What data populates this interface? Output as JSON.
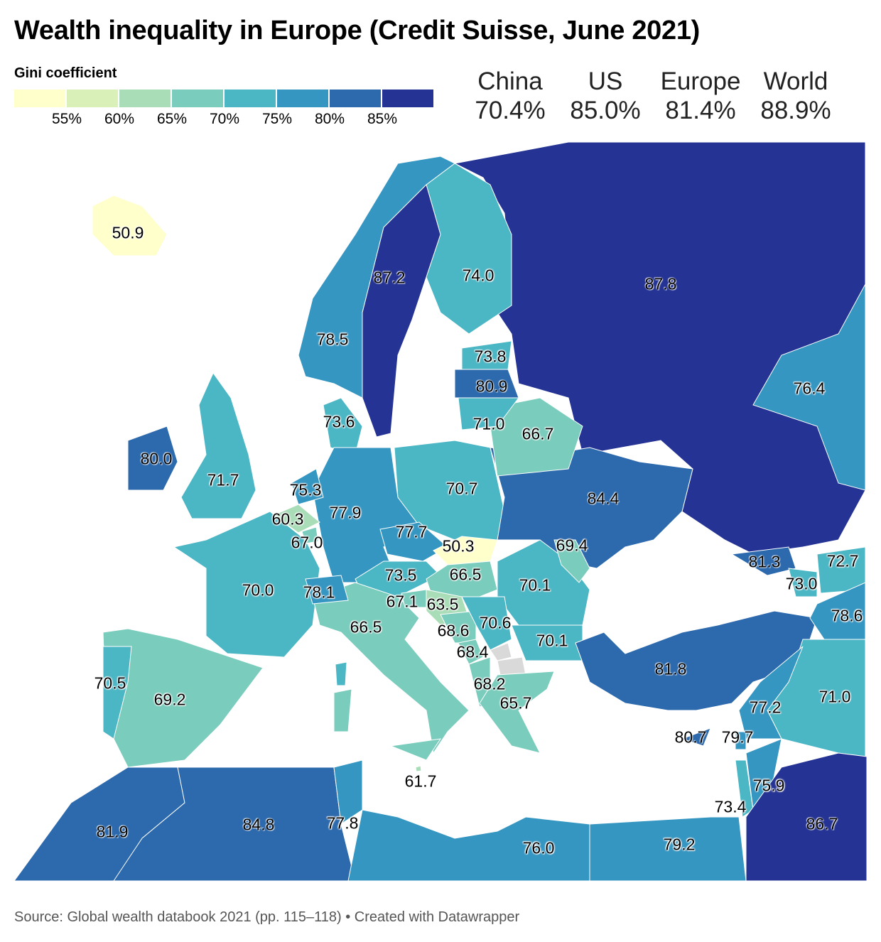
{
  "title": "Wealth inequality in Europe (Credit Suisse, June 2021)",
  "legend": {
    "title": "Gini coefficient",
    "ticks": [
      "55%",
      "60%",
      "65%",
      "70%",
      "75%",
      "80%",
      "85%"
    ],
    "colors": [
      "#ffffcc",
      "#d9f0b8",
      "#a9ddb7",
      "#7accbc",
      "#4bb6c4",
      "#3596c2",
      "#2c69ad",
      "#253494"
    ],
    "thresholds": [
      55,
      60,
      65,
      70,
      75,
      80,
      85
    ],
    "no_data_color": "#d9d9d9"
  },
  "comparison": [
    {
      "label": "China",
      "value": "70.4%"
    },
    {
      "label": "US",
      "value": "85.0%"
    },
    {
      "label": "Europe",
      "value": "81.4%"
    },
    {
      "label": "World",
      "value": "88.9%"
    }
  ],
  "map": {
    "regions": {
      "iceland": "50.9",
      "sweden": "87.2",
      "finland": "74.0",
      "russia": "87.8",
      "norway": "78.5",
      "estonia": "73.8",
      "latvia": "80.9",
      "lithuania": "71.0",
      "belarus": "66.7",
      "kazakhstan": "76.4",
      "denmark": "73.6",
      "ireland": "80.0",
      "uk": "71.7",
      "netherlands": "75.3",
      "germany": "77.9",
      "poland": "70.7",
      "ukraine": "84.4",
      "belgium": "60.3",
      "luxembourg": "67.0",
      "czechia": "77.7",
      "slovakia": "50.3",
      "moldova": "69.4",
      "austria": "73.5",
      "hungary": "66.5",
      "romania": "70.1",
      "france": "70.0",
      "switzerland": "78.1",
      "slovenia": "67.1",
      "croatia": "63.5",
      "italy": "66.5",
      "bosnia": "68.6",
      "serbia": "70.6",
      "bulgaria": "70.1",
      "montenegro": "68.4",
      "albania": "68.2",
      "greece": "65.7",
      "turkey": "81.8",
      "georgia": "81.3",
      "armenia": "73.0",
      "azerbaijan": "72.7",
      "iran": "78.6",
      "syria": "77.2",
      "iraq": "71.0",
      "cyprus": "80.7",
      "lebanon": "79.7",
      "israel": "73.4",
      "jordan": "75.9",
      "saudi-arabia": "86.7",
      "portugal": "70.5",
      "spain": "69.2",
      "malta": "61.7",
      "morocco": "81.9",
      "algeria": "84.8",
      "tunisia": "77.8",
      "libya": "76.0",
      "egypt": "79.2"
    }
  },
  "source": "Source: Global wealth databook 2021 (pp. 115–118) • Created with Datawrapper"
}
